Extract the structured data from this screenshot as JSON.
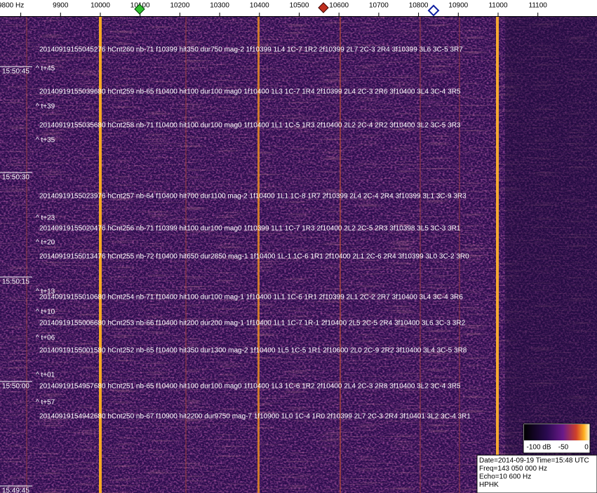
{
  "frequency_axis": {
    "labels": [
      "9800 Hz",
      "9900",
      "10000",
      "10100",
      "10200",
      "10300",
      "10400",
      "10500",
      "10600",
      "10700",
      "10800",
      "10900",
      "11000",
      "11100"
    ]
  },
  "time_labels": [
    "15:50:45",
    "15:50:30",
    "15:50:15",
    "15:50:00",
    "15:49:45"
  ],
  "detections": [
    "20140919155045276 hCnt260 nb-71 f10399 hit350 dur750 mag-2 1f10399 1L4 1C-7 1R2 2f10399 2L7 2C-3 2R4 3f10399 3L6 3C-5 3R7",
    "20140919155039680 hCnt259 nb-65 f10400 hit100 dur100 mag0 1f10400 1L3 1C-7 1R4 2f10399 2L4 2C-3 2R6 3f10400 3L4 3C-4 3R5",
    "20140919155035680 hCnt258 nb-71 f10400 hit100 dur100 mag0 1f10400 1L1 1C-5 1R3 2f10400 2L2 2C-4 2R2 3f10400 3L2 3C-5 3R3",
    "20140919155023976 hCnt257 nb-64 f10400 hit700 dur1100 mag-2 1f10400 1L1 1C-8 1R7 2f10399 2L4 2C-4 2R4 3f10399 3L1 3C-9 3R3",
    "20140919155020476 hCnt256 nb-71 f10399 hit100 dur100 mag0 1f10399 1L1 1C-7 1R3 2f10400 2L2 2C-5 2R3 3f10398 3L5 3C-3 3R1",
    "20140919155013476 hCnt255 nb-72 f10400 hit650 dur2850 mag-1 1f10400 1L-1 1C-6 1R1 2f10400 2L1 2C-6 2R4 3f10399 3L0 3C-2 3R0",
    "20140919155010680 hCnt254 nb-71 f10400 hit100 dur100 mag-1 1f10400 1L1 1C-6 1R1 2f10399 2L1 2C-2 2R7 3f10400 3L4 3C-4 3R6",
    "20140919155006680 hCnt253 nb-66 f10400 hit200 dur200 mag-1 1f10400 1L1 1C-7 1R-1 2f10400 2L5 2C-5 2R4 3f10400 3L6 3C-3 3R2",
    "20140919155001580 hCnt252 nb-65 f10400 hit350 dur1300 mag-2 1f10400 1L5 1C-5 1R1 2f10600 2L0 2C-9 2R2 3f10400 3L4 3C-5 3R8",
    "20140919154957680 hCnt251 nb-65 f10400 hit100 dur100 mag0 1f10400 1L3 1C-6 1R2 2f10400 2L4 2C-3 2R8 3f10400 3L2 3C-4 3R5",
    "20140919154942680 hCnt250 nb-67 f10900 hit2200 dur9750 mag-7 1f10900 1L0 1C-4 1R0 2f10399 2L7 2C-3 2R4 3f10401 3L2 3C-4 3R1"
  ],
  "offsets": [
    "^ t+45",
    "^ t+39",
    "^ t+35",
    "^ t+23",
    "^ t+20",
    "^ t+13",
    "^ t+10",
    "^ t+06",
    "^ t+01",
    "^ t+57"
  ],
  "color_bar": {
    "labels": [
      "-100 dB",
      "-50",
      "0"
    ]
  },
  "info": [
    "Date=2014-09-19 Time=15:48 UTC",
    "Freq=143 050 000 Hz",
    "Echo=10 600 Hz",
    "HPHK"
  ]
}
